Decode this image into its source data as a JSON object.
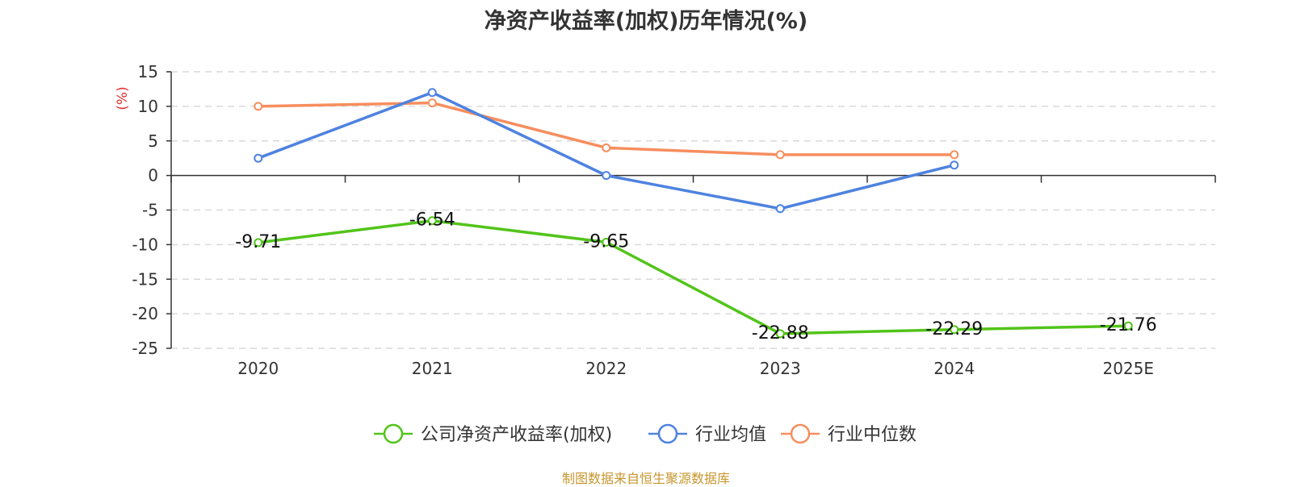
{
  "chart_data": {
    "type": "line",
    "title": "净资产收益率(加权)历年情况(%)",
    "ylabel": "(%)",
    "ylim": [
      -25,
      15
    ],
    "yticks": [
      15,
      10,
      5,
      0,
      -5,
      -10,
      -15,
      -20,
      -25
    ],
    "categories": [
      "2020",
      "2021",
      "2022",
      "2023",
      "2024",
      "2025E"
    ],
    "grid": true,
    "legend_position": "bottom",
    "series": [
      {
        "name": "公司净资产收益率(加权)",
        "color": "#52c41a",
        "values": [
          -9.71,
          -6.54,
          -9.65,
          -22.88,
          -22.29,
          -21.76
        ],
        "labels": [
          "-9.71",
          "-6.54",
          "-9.65",
          "-22.88",
          "-22.29",
          "-21.76"
        ]
      },
      {
        "name": "行业均值",
        "color": "#4e82e0",
        "values": [
          2.5,
          12.0,
          0.0,
          -4.8,
          1.5,
          null
        ]
      },
      {
        "name": "行业中位数",
        "color": "#f78e5e",
        "values": [
          10.0,
          10.5,
          4.0,
          3.0,
          3.0,
          null
        ]
      }
    ]
  },
  "footer": {
    "source": "制图数据来自恒生聚源数据库"
  },
  "colors": {
    "axis_label": "#e0302c",
    "grid": "#d9d9d9",
    "source": "#c8962e"
  }
}
